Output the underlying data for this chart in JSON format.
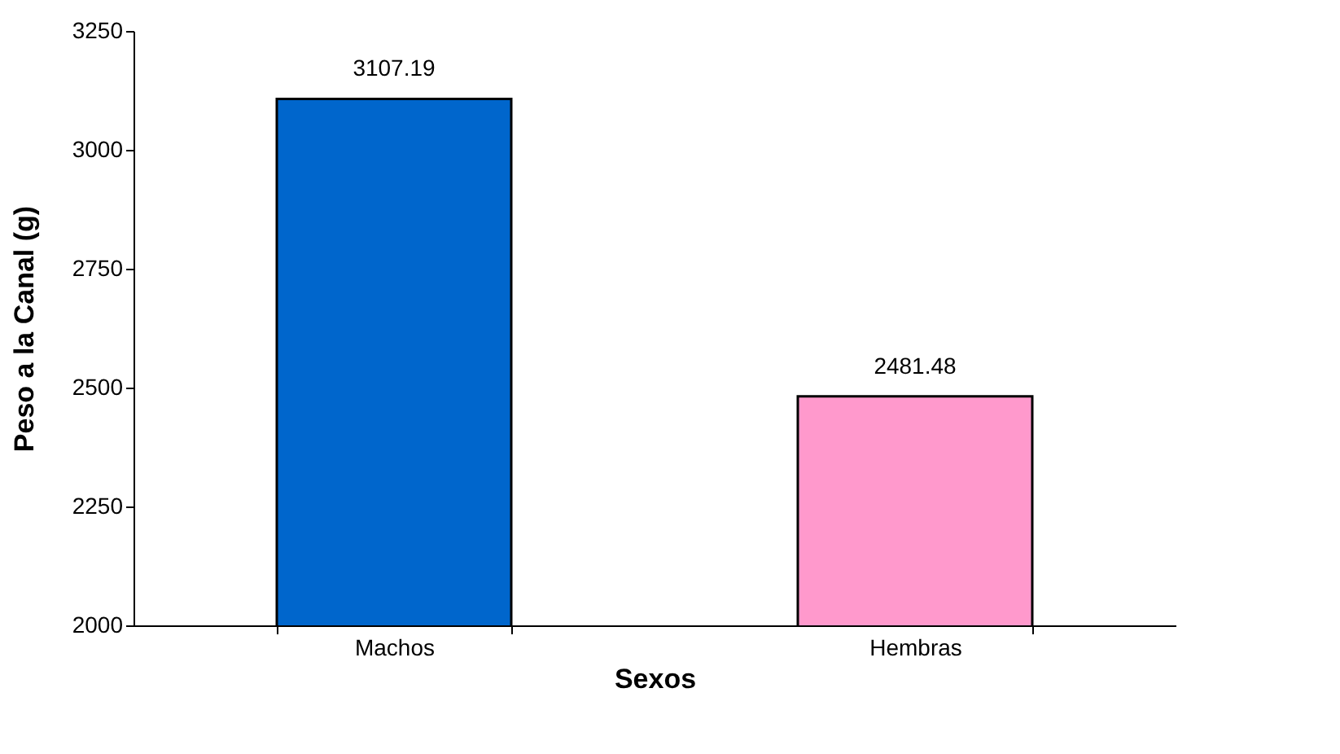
{
  "chart_data": {
    "type": "bar",
    "xlabel": "Sexos",
    "ylabel": "Peso a la Canal (g)",
    "categories": [
      "Machos",
      "Hembras"
    ],
    "values": [
      3107.19,
      2481.48
    ],
    "colors": [
      "#0066cc",
      "#ff99cc"
    ],
    "ylim": [
      2000,
      3250
    ],
    "yticks": [
      2000,
      2250,
      2500,
      2750,
      3000,
      3250
    ],
    "data_labels": true,
    "grid": false
  }
}
